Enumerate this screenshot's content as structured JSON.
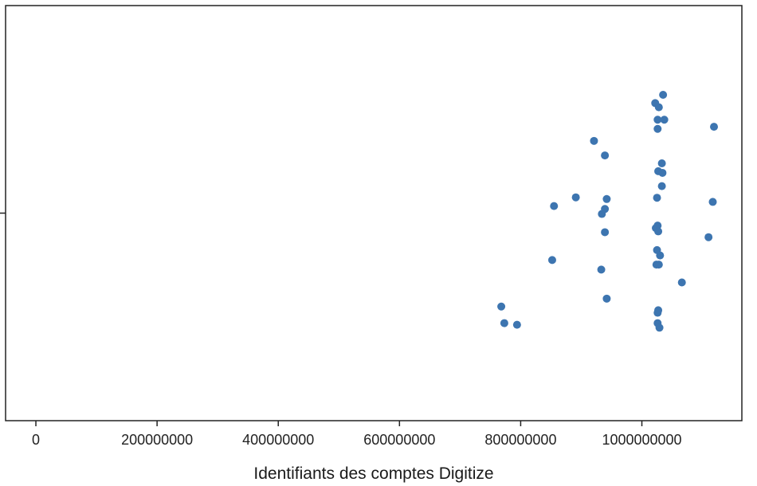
{
  "chart_data": {
    "type": "scatter",
    "title": "",
    "xlabel": "Identifiants des comptes Digitize",
    "ylabel": "",
    "xlim": [
      -50000000,
      1165000000
    ],
    "ylim": [
      -0.5,
      0.5
    ],
    "grid": false,
    "x_ticks": [
      {
        "value": 0,
        "label": "0"
      },
      {
        "value": 200000000,
        "label": "200000000"
      },
      {
        "value": 400000000,
        "label": "400000000"
      },
      {
        "value": 600000000,
        "label": "600000000"
      },
      {
        "value": 800000000,
        "label": "800000000"
      },
      {
        "value": 1000000000,
        "label": "1000000000"
      }
    ],
    "colors": {
      "point": "#3d75b0",
      "axis": "#222222"
    },
    "points": [
      {
        "x": 1035000000,
        "y": 0.285
      },
      {
        "x": 1022000000,
        "y": 0.265
      },
      {
        "x": 1028000000,
        "y": 0.255
      },
      {
        "x": 1026000000,
        "y": 0.225
      },
      {
        "x": 1037000000,
        "y": 0.225
      },
      {
        "x": 1026000000,
        "y": 0.203
      },
      {
        "x": 1119000000,
        "y": 0.208
      },
      {
        "x": 921000000,
        "y": 0.174
      },
      {
        "x": 939000000,
        "y": 0.139
      },
      {
        "x": 1033000000,
        "y": 0.12
      },
      {
        "x": 1027000000,
        "y": 0.101
      },
      {
        "x": 1034000000,
        "y": 0.097
      },
      {
        "x": 1033000000,
        "y": 0.065
      },
      {
        "x": 891000000,
        "y": 0.038
      },
      {
        "x": 942000000,
        "y": 0.034
      },
      {
        "x": 1025000000,
        "y": 0.037
      },
      {
        "x": 1117000000,
        "y": 0.027
      },
      {
        "x": 855000000,
        "y": 0.017
      },
      {
        "x": 939000000,
        "y": 0.01
      },
      {
        "x": 934000000,
        "y": -0.002
      },
      {
        "x": 1026000000,
        "y": -0.03
      },
      {
        "x": 1023000000,
        "y": -0.036
      },
      {
        "x": 1027000000,
        "y": -0.044
      },
      {
        "x": 939000000,
        "y": -0.046
      },
      {
        "x": 1110000000,
        "y": -0.058
      },
      {
        "x": 1025000000,
        "y": -0.089
      },
      {
        "x": 1030000000,
        "y": -0.102
      },
      {
        "x": 852000000,
        "y": -0.113
      },
      {
        "x": 1024000000,
        "y": -0.124
      },
      {
        "x": 1028000000,
        "y": -0.124
      },
      {
        "x": 933000000,
        "y": -0.136
      },
      {
        "x": 1066000000,
        "y": -0.167
      },
      {
        "x": 942000000,
        "y": -0.206
      },
      {
        "x": 768000000,
        "y": -0.225
      },
      {
        "x": 1027000000,
        "y": -0.234
      },
      {
        "x": 1026000000,
        "y": -0.24
      },
      {
        "x": 773000000,
        "y": -0.265
      },
      {
        "x": 794000000,
        "y": -0.269
      },
      {
        "x": 1026000000,
        "y": -0.265
      },
      {
        "x": 1029000000,
        "y": -0.276
      }
    ]
  }
}
